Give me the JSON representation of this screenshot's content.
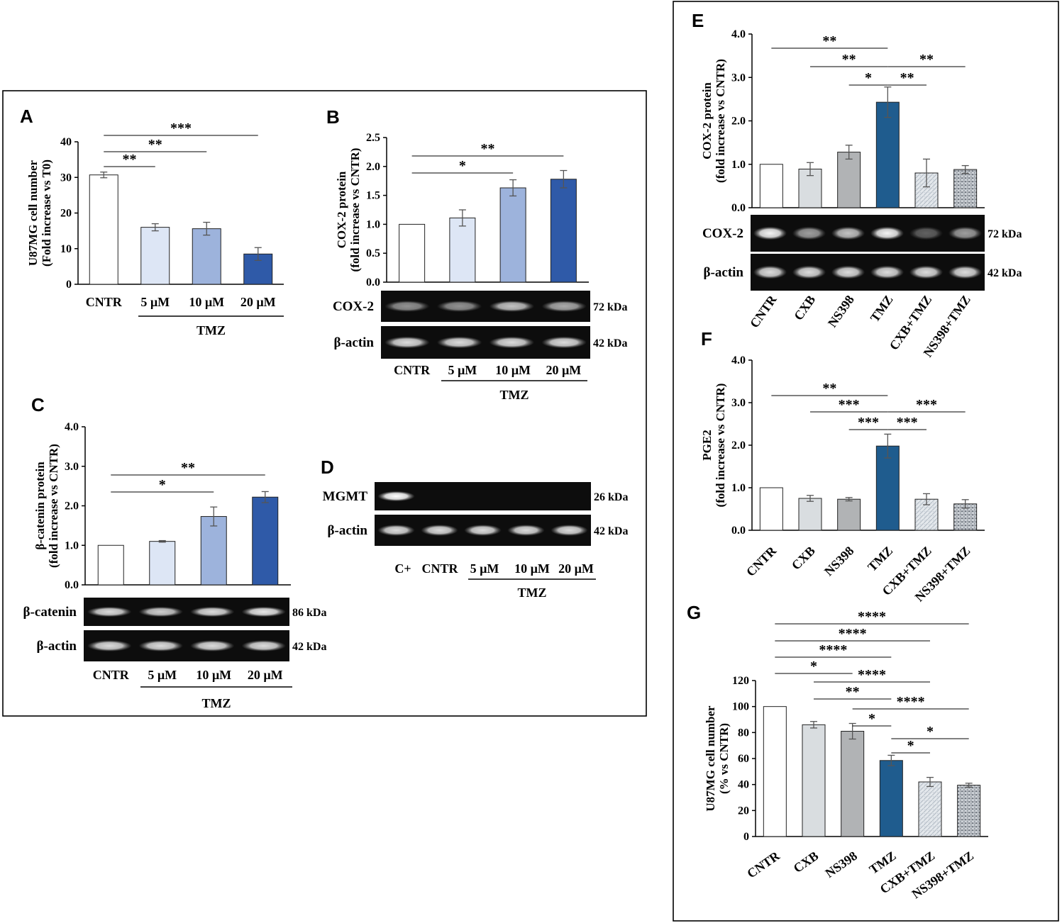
{
  "colors": {
    "white": "#ffffff",
    "c5": "#dde6f5",
    "c10": "#9db3dc",
    "c20": "#2f5aa8",
    "tmzE": "#1f5c8e",
    "cxb": "#d9dde0",
    "ns398": "#b1b3b5",
    "errbar": "#555555",
    "blotBg": "#0d0d0d",
    "band": "#f0f0f0"
  },
  "chart_data": [
    {
      "panel": "A",
      "type": "bar",
      "ylabel": [
        "U87MG cell number",
        "(Fold increase vs T0)"
      ],
      "categories": [
        "CNTR",
        "5 µM",
        "10 µM",
        "20 µM"
      ],
      "values": [
        30.7,
        16.0,
        15.6,
        8.5
      ],
      "errors": [
        0.8,
        1.0,
        1.8,
        1.8
      ],
      "fills": [
        "white",
        "c5",
        "c10",
        "c20"
      ],
      "ylim": [
        0,
        40
      ],
      "yticks": [
        "0",
        "10",
        "20",
        "30",
        "40"
      ],
      "group_label": "TMZ",
      "significance": [
        {
          "from": 0,
          "to": 1,
          "label": "**"
        },
        {
          "from": 0,
          "to": 2,
          "label": "**"
        },
        {
          "from": 0,
          "to": 3,
          "label": "***"
        }
      ]
    },
    {
      "panel": "B",
      "type": "bar",
      "ylabel": [
        "COX-2 protein",
        "(fold increase vs CNTR)"
      ],
      "categories": [
        "CNTR",
        "5 µM",
        "10 µM",
        "20 µM"
      ],
      "values": [
        1.0,
        1.11,
        1.63,
        1.78
      ],
      "errors": [
        0.0,
        0.14,
        0.14,
        0.15
      ],
      "fills": [
        "white",
        "c5",
        "c10",
        "c20"
      ],
      "ylim": [
        0,
        2.5
      ],
      "yticks": [
        "0.0",
        "0.5",
        "1.0",
        "1.5",
        "2.0",
        "2.5"
      ],
      "group_label": "TMZ",
      "significance": [
        {
          "from": 0,
          "to": 2,
          "label": "*"
        },
        {
          "from": 0,
          "to": 3,
          "label": "**"
        }
      ],
      "blots": [
        {
          "label": "COX-2",
          "kda": "72 kDa"
        },
        {
          "label": "β-actin",
          "kda": "42 kDa"
        }
      ]
    },
    {
      "panel": "C",
      "type": "bar",
      "ylabel": [
        "β-catenin protein",
        "(fold increase vs CNTR)"
      ],
      "categories": [
        "CNTR",
        "5 µM",
        "10 µM",
        "20 µM"
      ],
      "values": [
        1.0,
        1.1,
        1.73,
        2.22
      ],
      "errors": [
        0.0,
        0.02,
        0.24,
        0.14
      ],
      "fills": [
        "white",
        "c5",
        "c10",
        "c20"
      ],
      "ylim": [
        0,
        4.0
      ],
      "yticks": [
        "0.0",
        "1.0",
        "2.0",
        "3.0",
        "4.0"
      ],
      "group_label": "TMZ",
      "significance": [
        {
          "from": 0,
          "to": 2,
          "label": "*"
        },
        {
          "from": 0,
          "to": 3,
          "label": "**"
        }
      ],
      "blots": [
        {
          "label": "β-catenin",
          "kda": "86 kDa"
        },
        {
          "label": "β-actin",
          "kda": "42 kDa"
        }
      ]
    },
    {
      "panel": "D",
      "type": "blot",
      "categories": [
        "C+",
        "CNTR",
        "5 µM",
        "10 µM",
        "20 µM"
      ],
      "group_label": "TMZ",
      "blots": [
        {
          "label": "MGMT",
          "kda": "26 kDa"
        },
        {
          "label": "β-actin",
          "kda": "42 kDa"
        }
      ]
    },
    {
      "panel": "E",
      "type": "bar",
      "ylabel": [
        "COX-2 protein",
        "(fold increase vs CNTR)"
      ],
      "categories": [
        "CNTR",
        "CXB",
        "NS398",
        "TMZ",
        "CXB+TMZ",
        "NS398+TMZ"
      ],
      "values": [
        1.0,
        0.89,
        1.28,
        2.43,
        0.8,
        0.88
      ],
      "errors": [
        0.0,
        0.15,
        0.16,
        0.35,
        0.32,
        0.09
      ],
      "fills": [
        "white",
        "cxb",
        "ns398",
        "tmzE",
        "pattern-light",
        "pattern-dark"
      ],
      "ylim": [
        0,
        4.0
      ],
      "yticks": [
        "0.0",
        "1.0",
        "2.0",
        "3.0",
        "4.0"
      ],
      "significance": [
        {
          "from": 0,
          "to": 3,
          "label": "**"
        },
        {
          "from": 1,
          "to": 3,
          "label": "**"
        },
        {
          "from": 2,
          "to": 3,
          "label": "*"
        },
        {
          "from": 3,
          "to": 5,
          "label": "**"
        },
        {
          "from": 3,
          "to": 4,
          "label": "**"
        }
      ],
      "blots": [
        {
          "label": "COX-2",
          "kda": "72 kDa"
        },
        {
          "label": "β-actin",
          "kda": "42 kDa"
        }
      ]
    },
    {
      "panel": "F",
      "type": "bar",
      "ylabel": [
        "PGE2",
        "(fold increase vs CNTR)"
      ],
      "categories": [
        "CNTR",
        "CXB",
        "NS398",
        "TMZ",
        "CXB+TMZ",
        "NS398+TMZ"
      ],
      "values": [
        1.0,
        0.75,
        0.73,
        1.98,
        0.73,
        0.62
      ],
      "errors": [
        0.0,
        0.07,
        0.04,
        0.28,
        0.13,
        0.1
      ],
      "fills": [
        "white",
        "cxb",
        "ns398",
        "tmzE",
        "pattern-light",
        "pattern-dark"
      ],
      "ylim": [
        0,
        4.0
      ],
      "yticks": [
        "0.0",
        "1.0",
        "2.0",
        "3.0",
        "4.0"
      ],
      "significance": [
        {
          "from": 0,
          "to": 3,
          "label": "**"
        },
        {
          "from": 1,
          "to": 3,
          "label": "***"
        },
        {
          "from": 2,
          "to": 3,
          "label": "***"
        },
        {
          "from": 3,
          "to": 5,
          "label": "***"
        },
        {
          "from": 3,
          "to": 4,
          "label": "***"
        }
      ]
    },
    {
      "panel": "G",
      "type": "bar",
      "ylabel": [
        "U87MG cell number",
        "(% vs CNTR)"
      ],
      "categories": [
        "CNTR",
        "CXB",
        "NS398",
        "TMZ",
        "CXB+TMZ",
        "NS398+TMZ"
      ],
      "values": [
        100,
        86,
        81,
        58.5,
        42,
        39.5
      ],
      "errors": [
        0,
        2.5,
        6,
        4,
        3.5,
        1.5
      ],
      "fills": [
        "white",
        "cxb",
        "ns398",
        "tmzE",
        "pattern-light",
        "pattern-dark"
      ],
      "ylim": [
        0,
        120
      ],
      "yticks": [
        "0",
        "20",
        "40",
        "60",
        "80",
        "100",
        "120"
      ],
      "significance": [
        {
          "from": 0,
          "to": 5,
          "label": "****"
        },
        {
          "from": 0,
          "to": 4,
          "label": "****"
        },
        {
          "from": 0,
          "to": 3,
          "label": "****"
        },
        {
          "from": 0,
          "to": 2,
          "label": "*"
        },
        {
          "from": 1,
          "to": 4,
          "label": "****"
        },
        {
          "from": 1,
          "to": 3,
          "label": "**"
        },
        {
          "from": 2,
          "to": 5,
          "label": "****"
        },
        {
          "from": 2,
          "to": 3,
          "label": "*"
        },
        {
          "from": 3,
          "to": 5,
          "label": "*"
        },
        {
          "from": 3,
          "to": 4,
          "label": "*"
        }
      ]
    }
  ]
}
